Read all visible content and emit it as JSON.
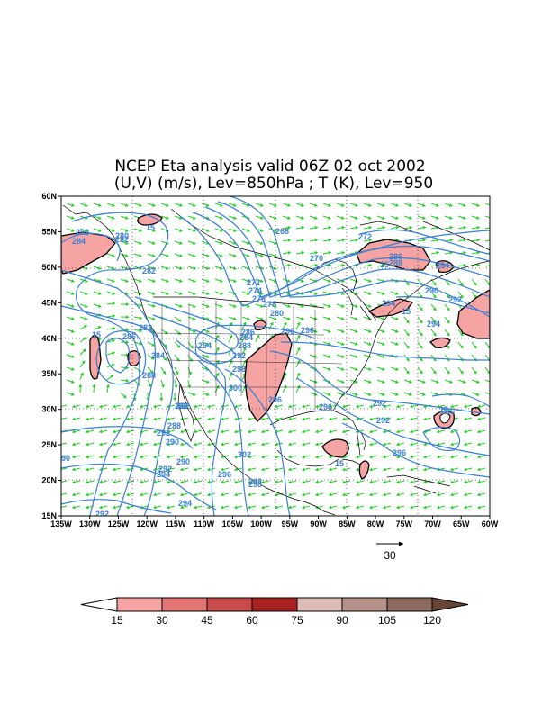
{
  "title": {
    "line1": "NCEP Eta analysis valid 06Z 02 oct 2002",
    "line2": "(U,V) (m/s), Lev=850hPa ; T (K), Lev=950"
  },
  "axes": {
    "lat_labels": [
      "60N",
      "55N",
      "50N",
      "45N",
      "40N",
      "35N",
      "30N",
      "25N",
      "20N",
      "15N"
    ],
    "lon_labels": [
      "135W",
      "130W",
      "125W",
      "120W",
      "115W",
      "110W",
      "105W",
      "100W",
      "95W",
      "90W",
      "85W",
      "80W",
      "75W",
      "70W",
      "65W",
      "60W"
    ]
  },
  "reference_vector": {
    "label": "30"
  },
  "colorbar": {
    "labels": [
      "15",
      "30",
      "45",
      "60",
      "75",
      "90",
      "105",
      "120"
    ],
    "colors": [
      "#ffffff",
      "#f5a3a3",
      "#e37575",
      "#c94a4a",
      "#a82222",
      "#dcbcb4",
      "#b49088",
      "#8c6a60",
      "#664438"
    ]
  },
  "contour_labels": {
    "temperature": [
      "282",
      "284",
      "280",
      "282",
      "282",
      "286",
      "284",
      "288",
      "272",
      "274",
      "276",
      "278",
      "280",
      "268",
      "270",
      "272",
      "286",
      "288",
      "284",
      "290",
      "292",
      "294",
      "294",
      "292",
      "296",
      "294",
      "292",
      "284",
      "288",
      "286",
      "292",
      "290",
      "288",
      "292",
      "290",
      "296",
      "298",
      "300",
      "302",
      "296",
      "298",
      "294",
      "296",
      "296",
      "292",
      "294",
      "292",
      "296",
      "292",
      "296",
      "298",
      "282",
      "15",
      "15",
      "15",
      "15",
      "15",
      "15",
      "90",
      "292"
    ],
    "wind_speed": [
      "15",
      "15",
      "15",
      "15",
      "15",
      "15"
    ]
  },
  "colors": {
    "temperature_contour": "#3a7fd0",
    "wind_vector": "#22cc22",
    "wind_fill": "#f5a3a3",
    "coastline": "#000000"
  }
}
